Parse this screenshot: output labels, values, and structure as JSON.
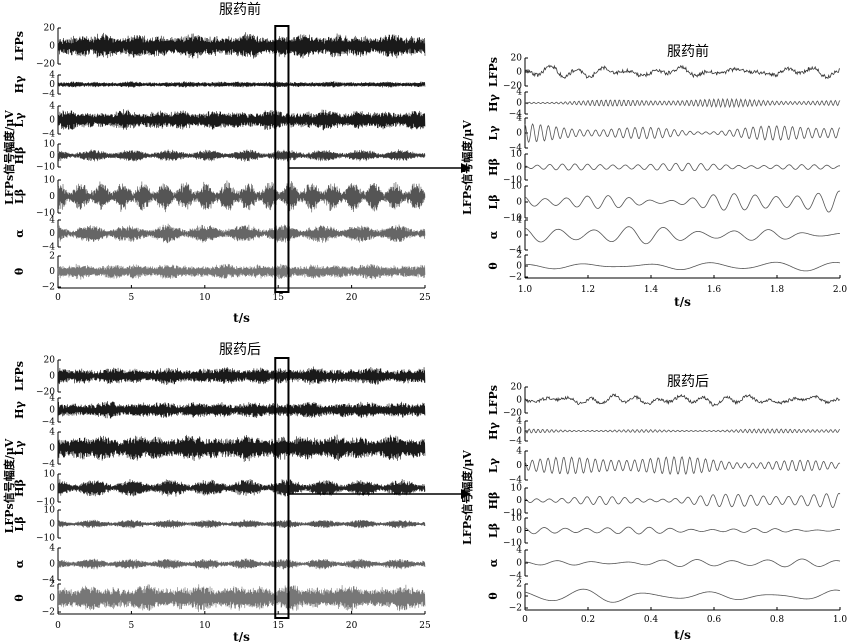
{
  "figure": {
    "y_axis_label": "LFPs信号幅度/μV",
    "x_axis_label": "t/s",
    "arrow_color": "#000000",
    "highlight_box": {
      "x_range": [
        14.8,
        15.7
      ]
    }
  },
  "chart_data": [
    {
      "type": "line",
      "title": "服药前",
      "x_range": [
        0,
        25
      ],
      "x_ticks": [
        0,
        5,
        10,
        15,
        20,
        25
      ],
      "x_tick_labels": [
        "0",
        "5",
        "10",
        "15",
        "20",
        "25"
      ],
      "series": [
        {
          "name": "LFPs",
          "color": "#1a1a1a",
          "ylim": [
            -20,
            20
          ],
          "yticks": [
            20,
            0,
            -20
          ],
          "yticks_text": [
            "20",
            "0",
            "−20"
          ],
          "amp": 14,
          "character": "broadband"
        },
        {
          "name": "Hγ",
          "color": "#1a1a1a",
          "ylim": [
            -4,
            4
          ],
          "yticks": [
            4,
            0,
            -4
          ],
          "yticks_text": [
            "4",
            "0",
            "−4"
          ],
          "amp": 1.3,
          "character": "high"
        },
        {
          "name": "Lγ",
          "color": "#1a1a1a",
          "ylim": [
            -4,
            4
          ],
          "yticks": [
            4,
            0,
            -4
          ],
          "yticks_text": [
            "4",
            "0",
            "−4"
          ],
          "amp": 2.9,
          "character": "high"
        },
        {
          "name": "Hβ",
          "color": "#3a3a3a",
          "ylim": [
            -10,
            10
          ],
          "yticks": [
            10,
            0,
            -10
          ],
          "yticks_text": [
            "10",
            "0",
            "−10"
          ],
          "amp": 5,
          "character": "beta"
        },
        {
          "name": "Lβ",
          "color": "#555555",
          "ylim": [
            -10,
            10
          ],
          "yticks": [
            10,
            0,
            -10
          ],
          "yticks_text": [
            "10",
            "0",
            "−10"
          ],
          "amp": 9,
          "character": "bursty"
        },
        {
          "name": "α",
          "color": "#666666",
          "ylim": [
            -4,
            4
          ],
          "yticks": [
            4,
            0,
            -4
          ],
          "yticks_text": [
            "4",
            "0",
            "−4"
          ],
          "amp": 2.6,
          "character": "alpha"
        },
        {
          "name": "θ",
          "color": "#777777",
          "ylim": [
            -2,
            2
          ],
          "yticks": [
            2,
            0,
            -2
          ],
          "yticks_text": [
            "2",
            "0",
            "−2"
          ],
          "amp": 1.0,
          "character": "theta"
        }
      ]
    },
    {
      "type": "line",
      "title": "服药前",
      "x_range": [
        1.0,
        2.0
      ],
      "x_ticks": [
        1.0,
        1.2,
        1.4,
        1.6,
        1.8,
        2.0
      ],
      "x_tick_labels": [
        "1.0",
        "1.2",
        "1.4",
        "1.6",
        "1.8",
        "2.0"
      ],
      "series": [
        {
          "name": "LFPs",
          "color": "#333333",
          "ylim": [
            -20,
            20
          ],
          "yticks": [
            20,
            0,
            -20
          ],
          "yticks_text": [
            "20",
            "0",
            "−20"
          ],
          "amp": 7,
          "freq": 12
        },
        {
          "name": "Hγ",
          "color": "#555555",
          "ylim": [
            -4,
            4
          ],
          "yticks": [
            4,
            0,
            -4
          ],
          "yticks_text": [
            "4",
            "0",
            "−4"
          ],
          "amp": 1.5,
          "freq": 70
        },
        {
          "name": "Lγ",
          "color": "#555555",
          "ylim": [
            -4,
            4
          ],
          "yticks": [
            4,
            0,
            -4
          ],
          "yticks_text": [
            "4",
            "0",
            "−4"
          ],
          "amp": 2.6,
          "freq": 40
        },
        {
          "name": "Hβ",
          "color": "#555555",
          "ylim": [
            -10,
            10
          ],
          "yticks": [
            10,
            0,
            -10
          ],
          "yticks_text": [
            "10",
            "0",
            "−10"
          ],
          "amp": 3,
          "freq": 25
        },
        {
          "name": "Lβ",
          "color": "#555555",
          "ylim": [
            -10,
            10
          ],
          "yticks": [
            10,
            0,
            -10
          ],
          "yticks_text": [
            "10",
            "0",
            "−10"
          ],
          "amp": 7,
          "freq": 15
        },
        {
          "name": "α",
          "color": "#555555",
          "ylim": [
            -4,
            4
          ],
          "yticks": [
            4,
            0,
            -4
          ],
          "yticks_text": [
            "4",
            "0",
            "−4"
          ],
          "amp": 2.4,
          "freq": 9
        },
        {
          "name": "θ",
          "color": "#555555",
          "ylim": [
            -2,
            2
          ],
          "yticks": [
            2,
            0,
            -2
          ],
          "yticks_text": [
            "2",
            "0",
            "−2"
          ],
          "amp": 0.9,
          "freq": 5
        }
      ]
    },
    {
      "type": "line",
      "title": "服药后",
      "x_range": [
        0,
        25
      ],
      "x_ticks": [
        0,
        5,
        10,
        15,
        20,
        25
      ],
      "x_tick_labels": [
        "0",
        "5",
        "10",
        "15",
        "20",
        "25"
      ],
      "series": [
        {
          "name": "LFPs",
          "color": "#1a1a1a",
          "ylim": [
            -20,
            20
          ],
          "yticks": [
            20,
            0,
            -20
          ],
          "yticks_text": [
            "20",
            "0",
            "−20"
          ],
          "amp": 11,
          "character": "broadband"
        },
        {
          "name": "Hγ",
          "color": "#1a1a1a",
          "ylim": [
            -4,
            4
          ],
          "yticks": [
            4,
            0,
            -4
          ],
          "yticks_text": [
            "4",
            "0",
            "−4"
          ],
          "amp": 2.8,
          "character": "high"
        },
        {
          "name": "Lγ",
          "color": "#1a1a1a",
          "ylim": [
            -4,
            4
          ],
          "yticks": [
            4,
            0,
            -4
          ],
          "yticks_text": [
            "4",
            "0",
            "−4"
          ],
          "amp": 3.3,
          "character": "high"
        },
        {
          "name": "Hβ",
          "color": "#222222",
          "ylim": [
            -10,
            10
          ],
          "yticks": [
            10,
            0,
            -10
          ],
          "yticks_text": [
            "10",
            "0",
            "−10"
          ],
          "amp": 6,
          "character": "beta"
        },
        {
          "name": "Lβ",
          "color": "#555555",
          "ylim": [
            -10,
            10
          ],
          "yticks": [
            10,
            0,
            -10
          ],
          "yticks_text": [
            "10",
            "0",
            "−10"
          ],
          "amp": 3,
          "character": "beta"
        },
        {
          "name": "α",
          "color": "#666666",
          "ylim": [
            -4,
            4
          ],
          "yticks": [
            4,
            0,
            -4
          ],
          "yticks_text": [
            "4",
            "0",
            "−4"
          ],
          "amp": 1.3,
          "character": "alpha"
        },
        {
          "name": "θ",
          "color": "#777777",
          "ylim": [
            -2,
            2
          ],
          "yticks": [
            2,
            0,
            -2
          ],
          "yticks_text": [
            "2",
            "0",
            "−2"
          ],
          "amp": 1.9,
          "character": "theta"
        }
      ]
    },
    {
      "type": "line",
      "title": "服药后",
      "x_range": [
        0,
        1.0
      ],
      "x_ticks": [
        0,
        0.2,
        0.4,
        0.6,
        0.8,
        1.0
      ],
      "x_tick_labels": [
        "0",
        "0.2",
        "0.4",
        "0.6",
        "0.8",
        "1.0"
      ],
      "series": [
        {
          "name": "LFPs",
          "color": "#333333",
          "ylim": [
            -20,
            20
          ],
          "yticks": [
            20,
            0,
            -20
          ],
          "yticks_text": [
            "20",
            "0",
            "−20"
          ],
          "amp": 6,
          "freq": 14
        },
        {
          "name": "Hγ",
          "color": "#555555",
          "ylim": [
            -4,
            4
          ],
          "yticks": [
            4,
            0,
            -4
          ],
          "yticks_text": [
            "4",
            "0",
            "−4"
          ],
          "amp": 1.0,
          "freq": 70
        },
        {
          "name": "Lγ",
          "color": "#555555",
          "ylim": [
            -4,
            4
          ],
          "yticks": [
            4,
            0,
            -4
          ],
          "yticks_text": [
            "4",
            "0",
            "−4"
          ],
          "amp": 2.6,
          "freq": 40
        },
        {
          "name": "Hβ",
          "color": "#555555",
          "ylim": [
            -10,
            10
          ],
          "yticks": [
            10,
            0,
            -10
          ],
          "yticks_text": [
            "10",
            "0",
            "−10"
          ],
          "amp": 6,
          "freq": 25
        },
        {
          "name": "Lβ",
          "color": "#555555",
          "ylim": [
            -10,
            10
          ],
          "yticks": [
            10,
            0,
            -10
          ],
          "yticks_text": [
            "10",
            "0",
            "−10"
          ],
          "amp": 3,
          "freq": 15
        },
        {
          "name": "α",
          "color": "#555555",
          "ylim": [
            -4,
            4
          ],
          "yticks": [
            4,
            0,
            -4
          ],
          "yticks_text": [
            "4",
            "0",
            "−4"
          ],
          "amp": 1.3,
          "freq": 9
        },
        {
          "name": "θ",
          "color": "#555555",
          "ylim": [
            -2,
            2
          ],
          "yticks": [
            2,
            0,
            -2
          ],
          "yticks_text": [
            "2",
            "0",
            "−2"
          ],
          "amp": 1.3,
          "freq": 5
        }
      ]
    }
  ]
}
